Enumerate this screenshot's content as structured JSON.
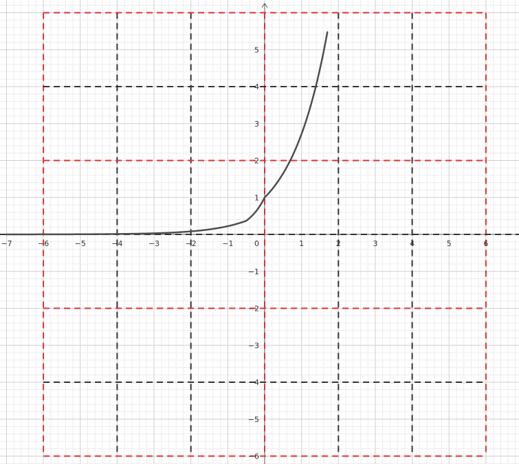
{
  "chart_data": {
    "type": "line",
    "title": "",
    "xlabel": "",
    "ylabel": "",
    "xlim": [
      -7,
      7
    ],
    "ylim": [
      -6.2,
      6.2
    ],
    "grid": true,
    "x_ticks": [
      {
        "value": -7,
        "label": "−7"
      },
      {
        "value": -6,
        "label": "−6"
      },
      {
        "value": -5,
        "label": "−5"
      },
      {
        "value": -4,
        "label": "−4"
      },
      {
        "value": -3,
        "label": "−3"
      },
      {
        "value": -2,
        "label": "−2"
      },
      {
        "value": -1,
        "label": "−1"
      },
      {
        "value": 1,
        "label": "1"
      },
      {
        "value": 2,
        "label": "2"
      },
      {
        "value": 3,
        "label": "3"
      },
      {
        "value": 4,
        "label": "4"
      },
      {
        "value": 5,
        "label": "5"
      },
      {
        "value": 6,
        "label": "6"
      }
    ],
    "y_ticks": [
      {
        "value": 5,
        "label": "5"
      },
      {
        "value": 4,
        "label": "4"
      },
      {
        "value": 3,
        "label": "3"
      },
      {
        "value": 2,
        "label": "2"
      },
      {
        "value": 1,
        "label": "1"
      },
      {
        "value": -1,
        "label": "−1"
      },
      {
        "value": -2,
        "label": "−2"
      },
      {
        "value": -3,
        "label": "−3"
      },
      {
        "value": -4,
        "label": "−4"
      },
      {
        "value": -5,
        "label": "−5"
      },
      {
        "value": -6,
        "label": "−6"
      }
    ],
    "origin_label": "0",
    "series": [
      {
        "color": "#4d4d4d",
        "x": [
          -7,
          -6,
          -5,
          -4,
          -3,
          -2,
          -1.5,
          -1,
          -0.5,
          0,
          0.25,
          0.5,
          0.75,
          1,
          1.1,
          1.25,
          1.4,
          1.5,
          1.6,
          1.7
        ],
        "y": [
          0.0005,
          0.0015,
          0.0041,
          0.0111,
          0.0302,
          0.0821,
          0.1353,
          0.2231,
          0.3679,
          1.0,
          1.284,
          1.6487,
          2.117,
          2.7183,
          3.0042,
          3.4903,
          4.0552,
          4.4817,
          4.953,
          5.4739
        ]
      }
    ],
    "reference_lines": {
      "red_color": "#e03030",
      "black_color": "#333333",
      "vertical": [
        {
          "x": -6,
          "color": "red"
        },
        {
          "x": -4,
          "color": "black"
        },
        {
          "x": -2,
          "color": "black"
        },
        {
          "x": 0,
          "color": "red"
        },
        {
          "x": 2,
          "color": "black"
        },
        {
          "x": 4,
          "color": "black"
        },
        {
          "x": 6,
          "color": "red"
        }
      ],
      "horizontal": [
        {
          "y": 6,
          "color": "red"
        },
        {
          "y": 4,
          "color": "black"
        },
        {
          "y": 2,
          "color": "red"
        },
        {
          "y": 0,
          "color": "black"
        },
        {
          "y": -2,
          "color": "red"
        },
        {
          "y": -4,
          "color": "black"
        },
        {
          "y": -6,
          "color": "red"
        }
      ]
    }
  }
}
